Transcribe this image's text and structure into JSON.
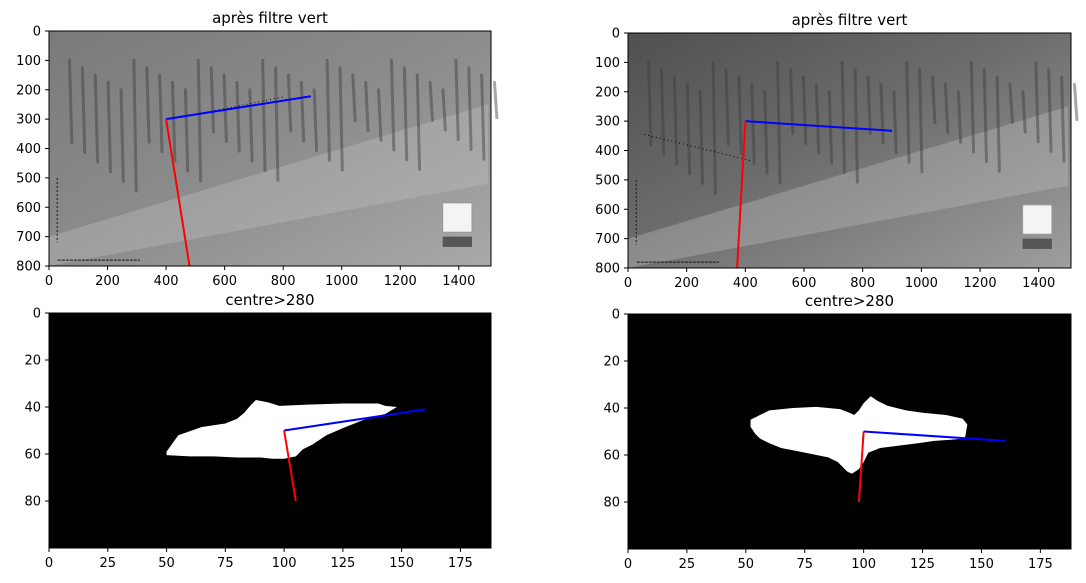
{
  "colors": {
    "axis_line_blue": "#0000ff",
    "axis_line_red": "#ff0000",
    "mask_background": "#000000",
    "mask_foreground": "#ffffff"
  },
  "chart_data": [
    {
      "id": "top-left",
      "type": "image",
      "title": "après filtre vert",
      "content": "grayscale photo",
      "xlim": [
        0,
        1510
      ],
      "ylim": [
        800,
        0
      ],
      "xticks": [
        0,
        200,
        400,
        600,
        800,
        1000,
        1200,
        1400
      ],
      "yticks": [
        0,
        100,
        200,
        300,
        400,
        500,
        600,
        700,
        800
      ],
      "lines": [
        {
          "name": "blue",
          "color": "#0000ff",
          "x": [
            400,
            895
          ],
          "y": [
            300,
            222
          ]
        },
        {
          "name": "red",
          "color": "#ff0000",
          "x": [
            400,
            480
          ],
          "y": [
            300,
            800
          ]
        }
      ],
      "dotted_line": {
        "x": [
          420,
          800
        ],
        "y": [
          300,
          225
        ]
      }
    },
    {
      "id": "top-right",
      "type": "image",
      "title": "après filtre vert",
      "content": "grayscale photo",
      "xlim": [
        0,
        1510
      ],
      "ylim": [
        800,
        0
      ],
      "xticks": [
        0,
        200,
        400,
        600,
        800,
        1000,
        1200,
        1400
      ],
      "yticks": [
        0,
        100,
        200,
        300,
        400,
        500,
        600,
        700,
        800
      ],
      "lines": [
        {
          "name": "blue",
          "color": "#0000ff",
          "x": [
            400,
            900
          ],
          "y": [
            300,
            333
          ]
        },
        {
          "name": "red",
          "color": "#ff0000",
          "x": [
            400,
            372
          ],
          "y": [
            300,
            800
          ]
        }
      ],
      "dotted_line": {
        "x": [
          55,
          420
        ],
        "y": [
          345,
          435
        ]
      }
    },
    {
      "id": "bottom-left",
      "type": "image",
      "title": "centre>280",
      "content": "binary mask",
      "xlim": [
        0,
        188
      ],
      "ylim": [
        100,
        0
      ],
      "xticks": [
        0,
        25,
        50,
        75,
        100,
        125,
        150,
        175
      ],
      "yticks": [
        0,
        20,
        40,
        60,
        80
      ],
      "lines": [
        {
          "name": "blue",
          "color": "#0000ff",
          "x": [
            100,
            160
          ],
          "y": [
            50,
            41
          ]
        },
        {
          "name": "red",
          "color": "#ff0000",
          "x": [
            100,
            105
          ],
          "y": [
            50,
            80
          ]
        }
      ],
      "mask_top": [
        [
          50,
          59
        ],
        [
          55,
          52
        ],
        [
          65,
          48.5
        ],
        [
          75,
          47
        ],
        [
          80,
          45
        ],
        [
          83,
          42.5
        ],
        [
          86,
          39
        ],
        [
          88,
          37
        ],
        [
          93,
          38
        ],
        [
          98,
          39.5
        ],
        [
          110,
          39
        ],
        [
          125,
          38.5
        ],
        [
          140,
          38.5
        ],
        [
          143,
          39.5
        ],
        [
          148,
          40
        ]
      ],
      "mask_bottom": [
        [
          148,
          40
        ],
        [
          143,
          43
        ],
        [
          135,
          45
        ],
        [
          125,
          49
        ],
        [
          118,
          52
        ],
        [
          112,
          56
        ],
        [
          108,
          58
        ],
        [
          105,
          61
        ],
        [
          100,
          62
        ],
        [
          95,
          62
        ],
        [
          90,
          61.5
        ],
        [
          80,
          61.5
        ],
        [
          70,
          61
        ],
        [
          60,
          61
        ],
        [
          50,
          60.5
        ]
      ]
    },
    {
      "id": "bottom-right",
      "type": "image",
      "title": "centre>280",
      "content": "binary mask",
      "xlim": [
        0,
        188
      ],
      "ylim": [
        100,
        0
      ],
      "xticks": [
        0,
        25,
        50,
        75,
        100,
        125,
        150,
        175
      ],
      "yticks": [
        0,
        20,
        40,
        60,
        80
      ],
      "lines": [
        {
          "name": "blue",
          "color": "#0000ff",
          "x": [
            100,
            160
          ],
          "y": [
            50,
            54
          ]
        },
        {
          "name": "red",
          "color": "#ff0000",
          "x": [
            100,
            98
          ],
          "y": [
            50,
            80
          ]
        }
      ],
      "mask_top": [
        [
          52,
          45
        ],
        [
          58,
          42
        ],
        [
          60,
          41
        ],
        [
          70,
          40
        ],
        [
          80,
          39.5
        ],
        [
          90,
          40.5
        ],
        [
          94,
          42
        ],
        [
          96,
          43
        ],
        [
          98,
          41
        ],
        [
          100,
          38
        ],
        [
          103,
          35
        ],
        [
          106,
          37
        ],
        [
          110,
          39
        ],
        [
          118,
          41
        ],
        [
          125,
          42
        ],
        [
          135,
          43
        ],
        [
          142,
          44.5
        ],
        [
          144,
          47
        ]
      ],
      "mask_bottom": [
        [
          144,
          47
        ],
        [
          143,
          53
        ],
        [
          137,
          53.5
        ],
        [
          130,
          54
        ],
        [
          123,
          55
        ],
        [
          115,
          56
        ],
        [
          107,
          57
        ],
        [
          102,
          59
        ],
        [
          100,
          63
        ],
        [
          98,
          66
        ],
        [
          95,
          68
        ],
        [
          93,
          67
        ],
        [
          89,
          63
        ],
        [
          85,
          61
        ],
        [
          80,
          60
        ],
        [
          75,
          59
        ],
        [
          70,
          58
        ],
        [
          65,
          57
        ],
        [
          60,
          55
        ],
        [
          56,
          53
        ],
        [
          54,
          51
        ],
        [
          52,
          48
        ]
      ]
    }
  ]
}
